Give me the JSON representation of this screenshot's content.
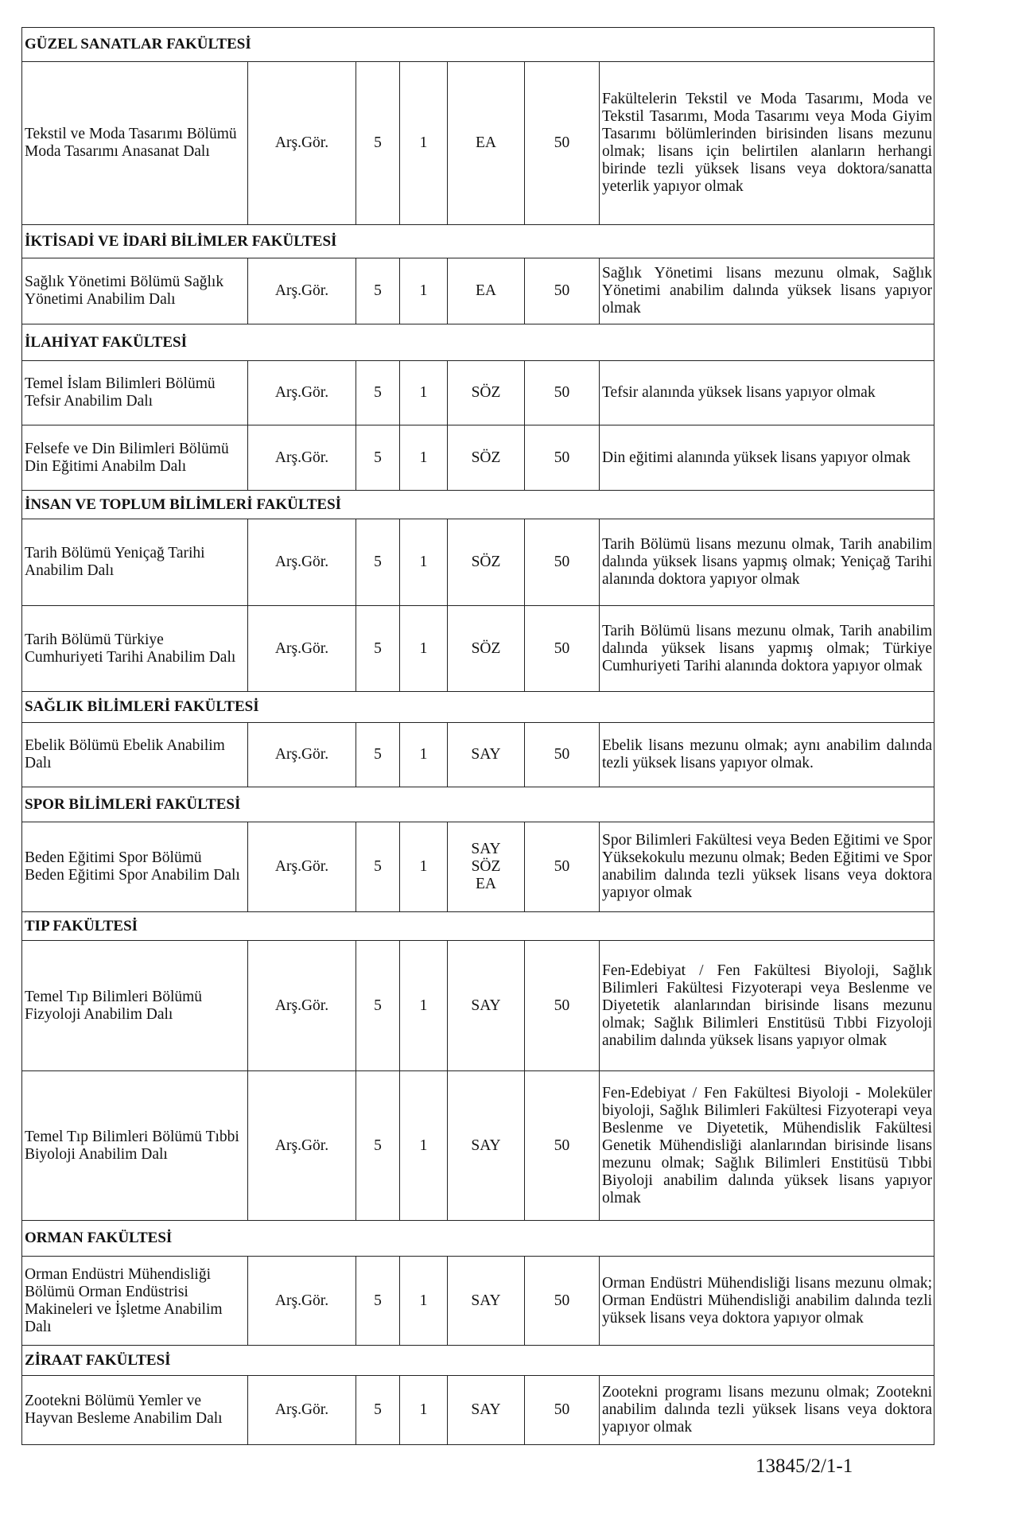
{
  "sections": [
    {
      "title": "GÜZEL SANATLAR FAKÜLTESİ",
      "rows": [
        {
          "dept": "Tekstil ve Moda Tasarımı Bölümü Moda Tasarımı Anasanat Dalı",
          "position": "Arş.Gör.",
          "col3": "5",
          "col4": "1",
          "exam": [
            "EA"
          ],
          "score": "50",
          "requirement": "Fakültelerin Tekstil ve Moda Tasarımı, Moda ve Tekstil Tasarımı, Moda Tasarımı veya Moda Giyim Tasarımı bölümlerinden birisinden lisans mezunu olmak; lisans için belirtilen alanların herhangi birinde tezli yüksek lisans veya doktora/sanatta yeterlik yapıyor olmak"
        }
      ]
    },
    {
      "title": "İKTİSADİ VE İDARİ BİLİMLER FAKÜLTESİ",
      "rows": [
        {
          "dept": "Sağlık Yönetimi Bölümü Sağlık Yönetimi Anabilim Dalı",
          "position": "Arş.Gör.",
          "col3": "5",
          "col4": "1",
          "exam": [
            "EA"
          ],
          "score": "50",
          "requirement": "Sağlık Yönetimi lisans mezunu olmak, Sağlık Yönetimi anabilim dalında yüksek lisans yapıyor olmak"
        }
      ]
    },
    {
      "title": "İLAHİYAT FAKÜLTESİ",
      "rows": [
        {
          "dept": "Temel İslam Bilimleri Bölümü Tefsir Anabilim Dalı",
          "position": "Arş.Gör.",
          "col3": "5",
          "col4": "1",
          "exam": [
            "SÖZ"
          ],
          "score": "50",
          "requirement": "Tefsir alanında yüksek lisans yapıyor olmak"
        },
        {
          "dept": "Felsefe ve Din Bilimleri Bölümü Din Eğitimi Anabilm Dalı",
          "position": "Arş.Gör.",
          "col3": "5",
          "col4": "1",
          "exam": [
            "SÖZ"
          ],
          "score": "50",
          "requirement": "Din eğitimi alanında yüksek lisans yapıyor olmak"
        }
      ]
    },
    {
      "title": "İNSAN VE TOPLUM BİLİMLERİ FAKÜLTESİ",
      "rows": [
        {
          "dept": "Tarih Bölümü Yeniçağ Tarihi Anabilim Dalı",
          "position": "Arş.Gör.",
          "col3": "5",
          "col4": "1",
          "exam": [
            "SÖZ"
          ],
          "score": "50",
          "requirement": "Tarih Bölümü lisans mezunu olmak, Tarih anabilim dalında yüksek lisans yapmış olmak; Yeniçağ Tarihi alanında doktora yapıyor olmak"
        },
        {
          "dept": "Tarih Bölümü Türkiye Cumhuriyeti Tarihi Anabilim Dalı",
          "position": "Arş.Gör.",
          "col3": "5",
          "col4": "1",
          "exam": [
            "SÖZ"
          ],
          "score": "50",
          "requirement": "Tarih Bölümü lisans mezunu olmak, Tarih anabilim dalında yüksek lisans yapmış olmak; Türkiye Cumhuriyeti Tarihi alanında doktora yapıyor olmak"
        }
      ]
    },
    {
      "title": "SAĞLIK BİLİMLERİ FAKÜLTESİ",
      "rows": [
        {
          "dept": "Ebelik Bölümü Ebelik Anabilim Dalı",
          "position": "Arş.Gör.",
          "col3": "5",
          "col4": "1",
          "exam": [
            "SAY"
          ],
          "score": "50",
          "requirement": "Ebelik lisans mezunu olmak; aynı anabilim dalında tezli yüksek lisans yapıyor olmak."
        }
      ]
    },
    {
      "title": "SPOR BİLİMLERİ FAKÜLTESİ",
      "rows": [
        {
          "dept": "Beden Eğitimi Spor Bölümü Beden Eğitimi Spor Anabilim Dalı",
          "position": "Arş.Gör.",
          "col3": "5",
          "col4": "1",
          "exam": [
            "SAY",
            "SÖZ",
            "EA"
          ],
          "score": "50",
          "requirement": "Spor Bilimleri Fakültesi veya Beden Eğitimi ve Spor Yüksekokulu mezunu olmak; Beden Eğitimi ve Spor anabilim dalında tezli yüksek lisans veya doktora yapıyor olmak"
        }
      ]
    },
    {
      "title": "TIP FAKÜLTESİ",
      "rows": [
        {
          "dept": "Temel Tıp Bilimleri Bölümü Fizyoloji Anabilim Dalı",
          "position": "Arş.Gör.",
          "col3": "5",
          "col4": "1",
          "exam": [
            "SAY"
          ],
          "score": "50",
          "requirement": "Fen-Edebiyat / Fen Fakültesi Biyoloji, Sağlık Bilimleri Fakültesi Fizyoterapi veya Beslenme ve Diyetetik alanlarından birisinde lisans mezunu olmak; Sağlık Bilimleri Enstitüsü Tıbbi Fizyoloji anabilim dalında yüksek lisans yapıyor olmak"
        },
        {
          "dept": "Temel Tıp Bilimleri Bölümü Tıbbi Biyoloji Anabilim Dalı",
          "position": "Arş.Gör.",
          "col3": "5",
          "col4": "1",
          "exam": [
            "SAY"
          ],
          "score": "50",
          "requirement": "Fen-Edebiyat / Fen Fakültesi Biyoloji - Moleküler biyoloji, Sağlık Bilimleri Fakültesi Fizyoterapi veya Beslenme ve Diyetetik, Mühendislik Fakültesi Genetik Mühendisliği alanlarından birisinde lisans mezunu olmak; Sağlık Bilimleri Enstitüsü Tıbbi Biyoloji anabilim dalında yüksek lisans yapıyor olmak"
        }
      ]
    },
    {
      "title": "ORMAN FAKÜLTESİ",
      "rows": [
        {
          "dept": "Orman Endüstri Mühendisliği Bölümü Orman Endüstrisi Makineleri ve İşletme Anabilim Dalı",
          "position": "Arş.Gör.",
          "col3": "5",
          "col4": "1",
          "exam": [
            "SAY"
          ],
          "score": "50",
          "requirement": "Orman Endüstri Mühendisliği lisans mezunu olmak; Orman Endüstri Mühendisliği anabilim dalında tezli yüksek lisans veya doktora yapıyor olmak"
        }
      ]
    },
    {
      "title": "ZİRAAT FAKÜLTESİ",
      "rows": [
        {
          "dept": "Zootekni Bölümü Yemler ve Hayvan Besleme Anabilim Dalı",
          "position": "Arş.Gör.",
          "col3": "5",
          "col4": "1",
          "exam": [
            "SAY"
          ],
          "score": "50",
          "requirement": "Zootekni programı lisans mezunu olmak; Zootekni anabilim dalında tezli yüksek lisans veya doktora yapıyor olmak"
        }
      ]
    }
  ],
  "footer": "13845/2/1-1"
}
